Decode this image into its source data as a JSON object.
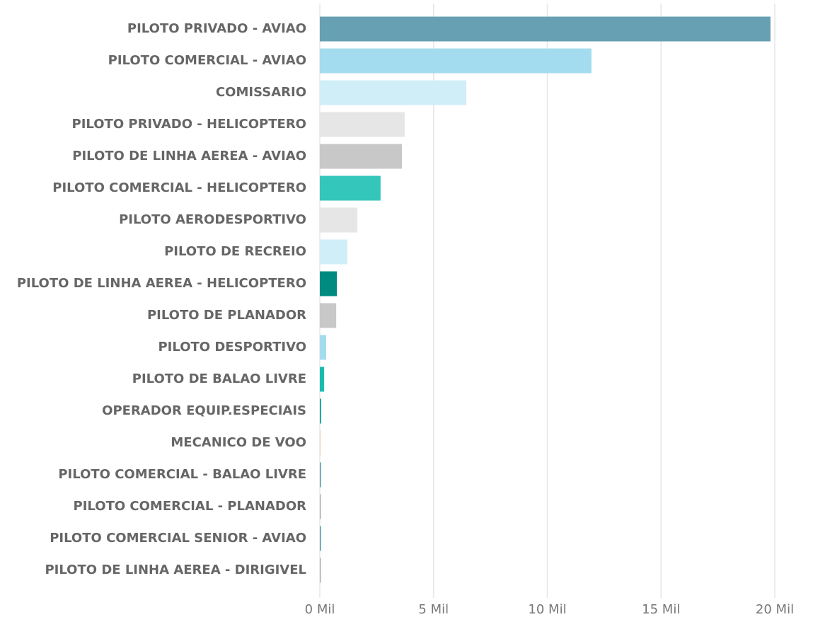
{
  "chart_data": {
    "type": "barh",
    "categories": [
      "PILOTO PRIVADO - AVIAO",
      "PILOTO COMERCIAL - AVIAO",
      "COMISSARIO",
      "PILOTO PRIVADO - HELICOPTERO",
      "PILOTO DE LINHA AEREA - AVIAO",
      "PILOTO COMERCIAL - HELICOPTERO",
      "PILOTO AERODESPORTIVO",
      "PILOTO DE RECREIO",
      "PILOTO DE LINHA AEREA - HELICOPTERO",
      "PILOTO DE PLANADOR",
      "PILOTO DESPORTIVO",
      "PILOTO DE BALAO LIVRE",
      "OPERADOR EQUIP.ESPECIAIS",
      "MECANICO DE VOO",
      "PILOTO COMERCIAL - BALAO LIVRE",
      "PILOTO COMERCIAL - PLANADOR",
      "PILOTO COMERCIAL SENIOR - AVIAO",
      "PILOTO DE LINHA AEREA - DIRIGIVEL"
    ],
    "values": [
      19.81,
      11.94,
      6.44,
      3.73,
      3.61,
      2.67,
      1.65,
      1.21,
      0.75,
      0.72,
      0.28,
      0.19,
      0.06,
      0.02,
      0.04,
      0.03,
      0.04,
      0.03
    ],
    "colors": [
      "#66a0b2",
      "#a4dcef",
      "#d0eef8",
      "#e6e6e6",
      "#c8c8c8",
      "#35c6bb",
      "#e6e6e6",
      "#d0eef8",
      "#008b80",
      "#c8c8c8",
      "#a4dcef",
      "#1abcb0",
      "#11a9a0",
      "#f7d9cc",
      "#4a9aa8",
      "#b0b0b0",
      "#4a9aa8",
      "#b0b0b0"
    ],
    "xlim": [
      0,
      20
    ],
    "xticks": [
      {
        "value": 0,
        "label": "0 Mil"
      },
      {
        "value": 5,
        "label": "5 Mil"
      },
      {
        "value": 10,
        "label": "10 Mil"
      },
      {
        "value": 15,
        "label": "15 Mil"
      },
      {
        "value": 20,
        "label": "20 Mil"
      }
    ],
    "grid": true
  }
}
